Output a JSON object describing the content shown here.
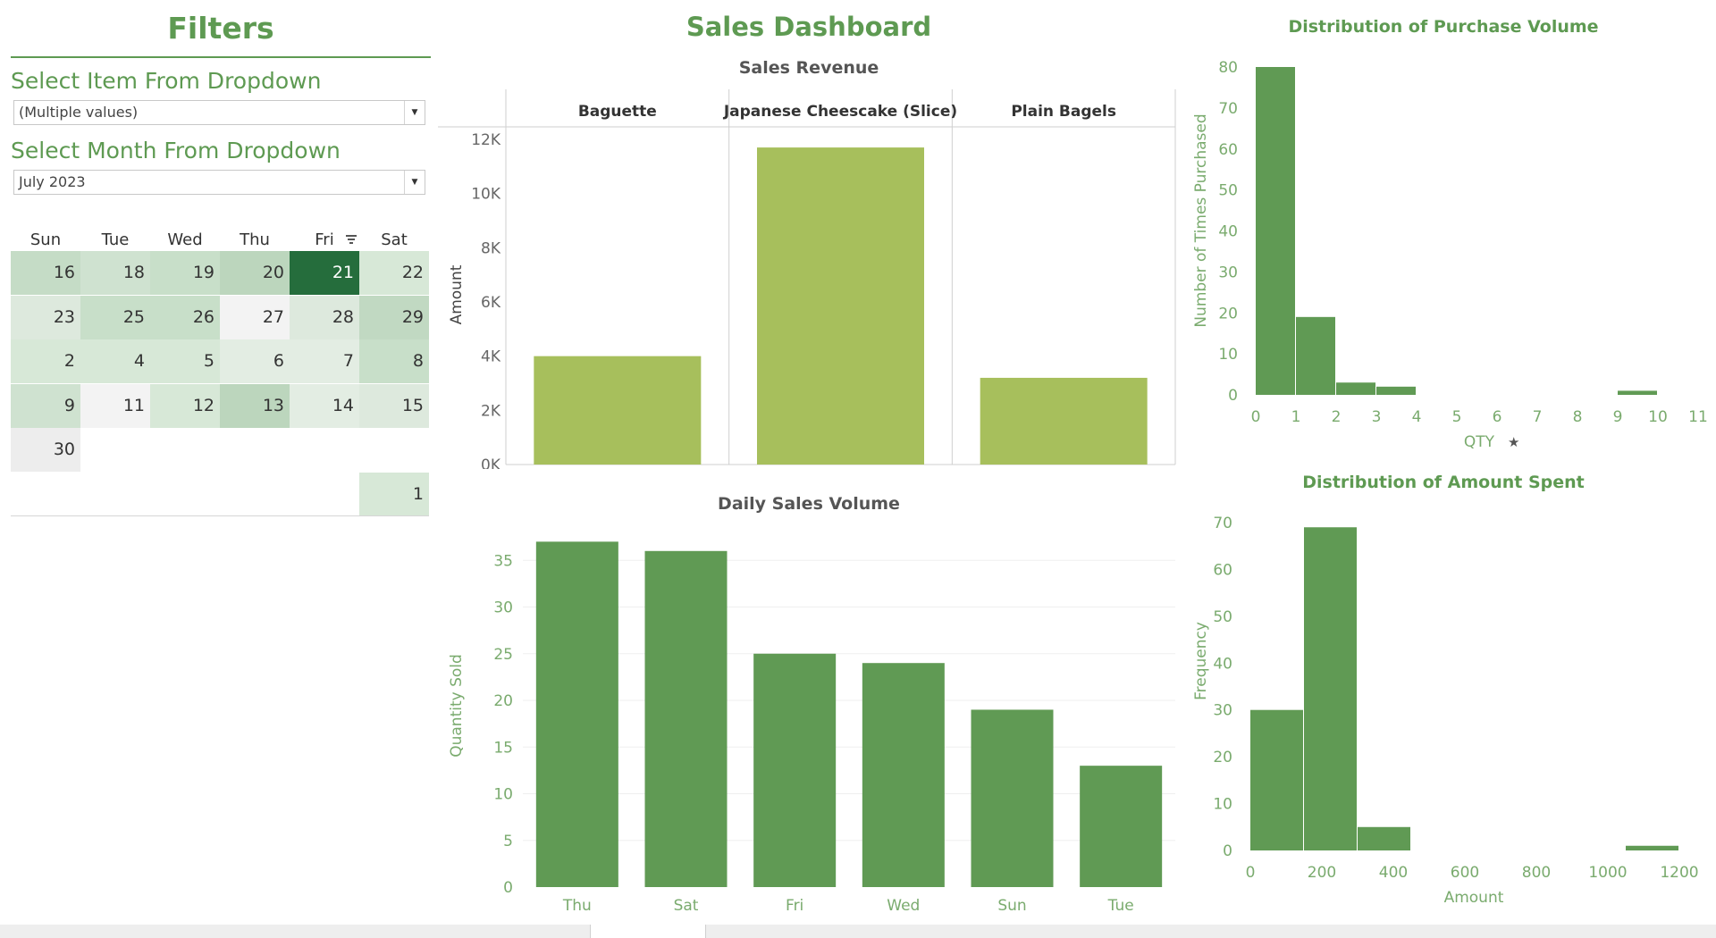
{
  "filters": {
    "title": "Filters",
    "item_label": "Select Item From Dropdown",
    "item_value": "(Multiple values)",
    "month_label": "Select Month From Dropdown",
    "month_value": "July 2023"
  },
  "calendar": {
    "headers": [
      "Sun",
      "Tue",
      "Wed",
      "Thu",
      "Fri",
      "Sat"
    ],
    "rows": [
      [
        "16",
        "18",
        "19",
        "20",
        "21",
        "22"
      ],
      [
        "23",
        "25",
        "26",
        "27",
        "28",
        "29"
      ],
      [
        "2",
        "4",
        "5",
        "6",
        "7",
        "8"
      ],
      [
        "9",
        "11",
        "12",
        "13",
        "14",
        "15"
      ],
      [
        "30",
        "",
        "",
        "",
        "",
        ""
      ],
      [
        "",
        "",
        "",
        "",
        "",
        "1"
      ]
    ],
    "shades": [
      [
        "#c5dcc6",
        "#cfe2d0",
        "#c8dfc9",
        "#bcd6bd",
        "#256d3c",
        "#d7e8d7"
      ],
      [
        "#dde9dd",
        "#c8dfc9",
        "#c8dfc9",
        "#f3f3f3",
        "#dde9dd",
        "#c1d9c2"
      ],
      [
        "#d7e8d7",
        "#d7e8d7",
        "#d7e8d7",
        "#e3ede3",
        "#e3ede3",
        "#c8dfc9"
      ],
      [
        "#cfe2d0",
        "#f3f3f3",
        "#d7e8d7",
        "#bcd6bd",
        "#e3ede3",
        "#dde9dd"
      ],
      [
        "#ededed",
        null,
        null,
        null,
        null,
        null
      ],
      [
        null,
        null,
        null,
        null,
        null,
        "#d7e8d7"
      ]
    ],
    "highlight_text_color": "#ffffff"
  },
  "dashboard": {
    "title": "Sales Dashboard"
  },
  "colors": {
    "accent": "#5e9a52",
    "bar_light": "#a7bf5c",
    "bar_dark": "#609a54"
  },
  "chart_data": [
    {
      "type": "bar",
      "title": "Sales Revenue",
      "ylabel": "Amount",
      "categories": [
        "Baguette",
        "Japanese Cheescake (Slice)",
        "Plain Bagels"
      ],
      "values": [
        4000,
        11700,
        3200
      ],
      "yticks": [
        "0K",
        "2K",
        "4K",
        "6K",
        "8K",
        "10K",
        "12K"
      ],
      "ylim": [
        0,
        12000
      ],
      "grid": false
    },
    {
      "type": "bar",
      "title": "Daily Sales Volume",
      "ylabel": "Quantity Sold",
      "categories": [
        "Thu",
        "Sat",
        "Fri",
        "Wed",
        "Sun",
        "Tue"
      ],
      "values": [
        37,
        36,
        25,
        24,
        19,
        13
      ],
      "yticks": [
        "0",
        "5",
        "10",
        "15",
        "20",
        "25",
        "30",
        "35"
      ],
      "ylim": [
        0,
        37
      ]
    },
    {
      "type": "bar",
      "title": "Distribution of Purchase Volume",
      "xlabel": "QTY",
      "ylabel": "Number of Times Purchased",
      "bins": [
        [
          0,
          1,
          80
        ],
        [
          1,
          2,
          19
        ],
        [
          2,
          3,
          3
        ],
        [
          3,
          4,
          2
        ],
        [
          9,
          10,
          1
        ]
      ],
      "xticks": [
        "0",
        "1",
        "2",
        "3",
        "4",
        "5",
        "6",
        "7",
        "8",
        "9",
        "10",
        "11"
      ],
      "yticks": [
        "0",
        "10",
        "20",
        "30",
        "40",
        "50",
        "60",
        "70",
        "80"
      ],
      "ylim": [
        0,
        80
      ]
    },
    {
      "type": "bar",
      "title": "Distribution of Amount Spent",
      "xlabel": "Amount",
      "ylabel": "Frequency",
      "bins": [
        [
          0,
          150,
          30
        ],
        [
          150,
          300,
          69
        ],
        [
          300,
          450,
          5
        ],
        [
          1050,
          1200,
          1
        ]
      ],
      "xticks": [
        "0",
        "200",
        "400",
        "600",
        "800",
        "1000",
        "1200"
      ],
      "yticks": [
        "0",
        "10",
        "20",
        "30",
        "40",
        "50",
        "60",
        "70"
      ],
      "ylim": [
        0,
        70
      ]
    }
  ]
}
